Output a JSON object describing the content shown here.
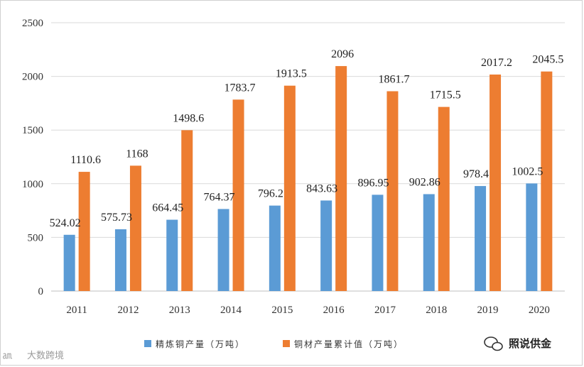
{
  "chart_data": {
    "type": "bar",
    "categories": [
      "2011",
      "2012",
      "2013",
      "2014",
      "2015",
      "2016",
      "2017",
      "2018",
      "2019",
      "2020"
    ],
    "series": [
      {
        "name": "精炼铜产量（万吨）",
        "color": "#5b9bd5",
        "values": [
          524.02,
          575.73,
          664.45,
          764.37,
          796.2,
          843.63,
          896.95,
          902.86,
          978.4,
          1002.5
        ],
        "labels": [
          "524.02",
          "575.73",
          "664.45",
          "764.37",
          "796.2",
          "843.63",
          "896.95",
          "902.86",
          "978.4",
          "1002.5"
        ]
      },
      {
        "name": "铜材产量累计值（万吨）",
        "color": "#ed7d31",
        "values": [
          1110.6,
          1168,
          1498.6,
          1783.7,
          1913.5,
          2096,
          1861.7,
          1715.5,
          2017.2,
          2045.5
        ],
        "labels": [
          "1110.6",
          "1168",
          "1498.6",
          "1783.7",
          "1913.5",
          "2096",
          "1861.7",
          "1715.5",
          "2017.2",
          "2045.5"
        ]
      }
    ],
    "ylim": [
      0,
      2500
    ],
    "yticks": [
      "0",
      "500",
      "1000",
      "1500",
      "2000",
      "2500"
    ],
    "grid": true,
    "legend": "bottom"
  },
  "watermark_left": "大数跨境",
  "watermark_right": "照说供金"
}
